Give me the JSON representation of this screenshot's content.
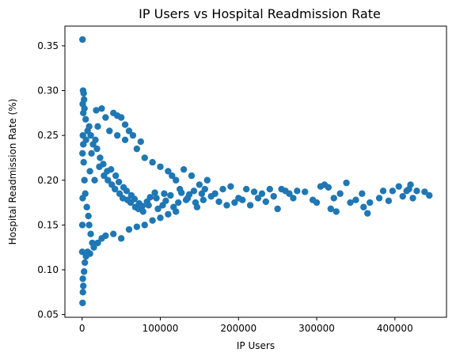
{
  "chart_data": {
    "type": "scatter",
    "title": "IP Users vs Hospital Readmission Rate",
    "xlabel": "IP Users",
    "ylabel": "Hospital Readmission Rate (%)",
    "xlim": [
      -22000,
      466000
    ],
    "ylim": [
      0.047,
      0.372
    ],
    "xticks": [
      0,
      100000,
      200000,
      300000,
      400000
    ],
    "yticks": [
      0.05,
      0.1,
      0.15,
      0.2,
      0.25,
      0.3,
      0.35
    ],
    "grid": false,
    "marker_color": "#1f77b4",
    "series": [
      {
        "points": [
          [
            500,
            0.357
          ],
          [
            1200,
            0.3
          ],
          [
            2000,
            0.297
          ],
          [
            2500,
            0.29
          ],
          [
            800,
            0.285
          ],
          [
            3000,
            0.28
          ],
          [
            1500,
            0.275
          ],
          [
            4500,
            0.268
          ],
          [
            600,
            0.063
          ],
          [
            1000,
            0.075
          ],
          [
            1500,
            0.082
          ],
          [
            900,
            0.09
          ],
          [
            2500,
            0.098
          ],
          [
            3500,
            0.108
          ],
          [
            5000,
            0.115
          ],
          [
            7000,
            0.12
          ],
          [
            10000,
            0.118
          ],
          [
            15000,
            0.125
          ],
          [
            20000,
            0.13
          ],
          [
            25000,
            0.135
          ],
          [
            30000,
            0.138
          ],
          [
            40000,
            0.14
          ],
          [
            50000,
            0.135
          ],
          [
            60000,
            0.145
          ],
          [
            70000,
            0.148
          ],
          [
            80000,
            0.15
          ],
          [
            90000,
            0.155
          ],
          [
            100000,
            0.158
          ],
          [
            110000,
            0.162
          ],
          [
            120000,
            0.165
          ],
          [
            18000,
            0.278
          ],
          [
            25000,
            0.28
          ],
          [
            30000,
            0.27
          ],
          [
            40000,
            0.275
          ],
          [
            45000,
            0.272
          ],
          [
            50000,
            0.27
          ],
          [
            55000,
            0.262
          ],
          [
            60000,
            0.255
          ],
          [
            65000,
            0.25
          ],
          [
            75000,
            0.243
          ],
          [
            20000,
            0.26
          ],
          [
            35000,
            0.255
          ],
          [
            45000,
            0.25
          ],
          [
            55000,
            0.245
          ],
          [
            70000,
            0.235
          ],
          [
            80000,
            0.225
          ],
          [
            90000,
            0.22
          ],
          [
            100000,
            0.215
          ],
          [
            110000,
            0.21
          ],
          [
            115000,
            0.205
          ],
          [
            120000,
            0.2
          ],
          [
            130000,
            0.212
          ],
          [
            140000,
            0.205
          ],
          [
            150000,
            0.195
          ],
          [
            160000,
            0.2
          ],
          [
            170000,
            0.185
          ],
          [
            180000,
            0.19
          ],
          [
            190000,
            0.193
          ],
          [
            200000,
            0.18
          ],
          [
            210000,
            0.19
          ],
          [
            220000,
            0.187
          ],
          [
            230000,
            0.185
          ],
          [
            240000,
            0.19
          ],
          [
            250000,
            0.168
          ],
          [
            255000,
            0.19
          ],
          [
            260000,
            0.188
          ],
          [
            265000,
            0.185
          ],
          [
            270000,
            0.18
          ],
          [
            275000,
            0.188
          ],
          [
            285000,
            0.187
          ],
          [
            295000,
            0.178
          ],
          [
            300000,
            0.175
          ],
          [
            305000,
            0.193
          ],
          [
            310000,
            0.195
          ],
          [
            315000,
            0.192
          ],
          [
            318000,
            0.168
          ],
          [
            322000,
            0.18
          ],
          [
            325000,
            0.165
          ],
          [
            330000,
            0.185
          ],
          [
            338000,
            0.197
          ],
          [
            343000,
            0.175
          ],
          [
            350000,
            0.178
          ],
          [
            358000,
            0.185
          ],
          [
            360000,
            0.17
          ],
          [
            365000,
            0.163
          ],
          [
            368000,
            0.175
          ],
          [
            380000,
            0.18
          ],
          [
            385000,
            0.188
          ],
          [
            392000,
            0.177
          ],
          [
            397000,
            0.188
          ],
          [
            405000,
            0.193
          ],
          [
            410000,
            0.182
          ],
          [
            415000,
            0.188
          ],
          [
            418000,
            0.19
          ],
          [
            420000,
            0.195
          ],
          [
            423000,
            0.18
          ],
          [
            428000,
            0.188
          ],
          [
            438000,
            0.187
          ],
          [
            444000,
            0.183
          ],
          [
            10000,
            0.21
          ],
          [
            12000,
            0.23
          ],
          [
            14000,
            0.24
          ],
          [
            16000,
            0.2
          ],
          [
            22000,
            0.215
          ],
          [
            28000,
            0.205
          ],
          [
            33000,
            0.2
          ],
          [
            38000,
            0.195
          ],
          [
            42000,
            0.19
          ],
          [
            48000,
            0.185
          ],
          [
            52000,
            0.18
          ],
          [
            58000,
            0.178
          ],
          [
            62000,
            0.175
          ],
          [
            68000,
            0.17
          ],
          [
            72000,
            0.168
          ],
          [
            78000,
            0.165
          ],
          [
            85000,
            0.172
          ],
          [
            95000,
            0.18
          ],
          [
            105000,
            0.185
          ],
          [
            125000,
            0.19
          ],
          [
            135000,
            0.18
          ],
          [
            145000,
            0.175
          ],
          [
            155000,
            0.178
          ],
          [
            165000,
            0.182
          ],
          [
            175000,
            0.176
          ],
          [
            185000,
            0.172
          ],
          [
            195000,
            0.175
          ],
          [
            205000,
            0.178
          ],
          [
            215000,
            0.172
          ],
          [
            225000,
            0.18
          ],
          [
            235000,
            0.176
          ],
          [
            245000,
            0.182
          ],
          [
            8000,
            0.16
          ],
          [
            9000,
            0.15
          ],
          [
            11000,
            0.14
          ],
          [
            13000,
            0.13
          ],
          [
            6000,
            0.17
          ],
          [
            4000,
            0.185
          ],
          [
            3000,
            0.2
          ],
          [
            2000,
            0.22
          ],
          [
            1500,
            0.24
          ],
          [
            1000,
            0.25
          ],
          [
            500,
            0.23
          ],
          [
            700,
            0.18
          ],
          [
            300,
            0.15
          ],
          [
            200,
            0.12
          ],
          [
            5000,
            0.245
          ],
          [
            7000,
            0.255
          ],
          [
            9000,
            0.26
          ],
          [
            11000,
            0.25
          ],
          [
            17000,
            0.245
          ],
          [
            19000,
            0.235
          ],
          [
            23000,
            0.225
          ],
          [
            27000,
            0.218
          ],
          [
            32000,
            0.21
          ],
          [
            37000,
            0.212
          ],
          [
            43000,
            0.205
          ],
          [
            47000,
            0.198
          ],
          [
            53000,
            0.192
          ],
          [
            57000,
            0.188
          ],
          [
            63000,
            0.183
          ],
          [
            67000,
            0.179
          ],
          [
            73000,
            0.174
          ],
          [
            77000,
            0.171
          ],
          [
            83000,
            0.176
          ],
          [
            87000,
            0.181
          ],
          [
            93000,
            0.186
          ],
          [
            97000,
            0.168
          ],
          [
            103000,
            0.172
          ],
          [
            107000,
            0.177
          ],
          [
            113000,
            0.183
          ],
          [
            117000,
            0.17
          ],
          [
            123000,
            0.175
          ],
          [
            127000,
            0.186
          ],
          [
            133000,
            0.178
          ],
          [
            137000,
            0.184
          ],
          [
            143000,
            0.188
          ],
          [
            147000,
            0.17
          ],
          [
            153000,
            0.185
          ],
          [
            157000,
            0.19
          ]
        ]
      }
    ]
  }
}
